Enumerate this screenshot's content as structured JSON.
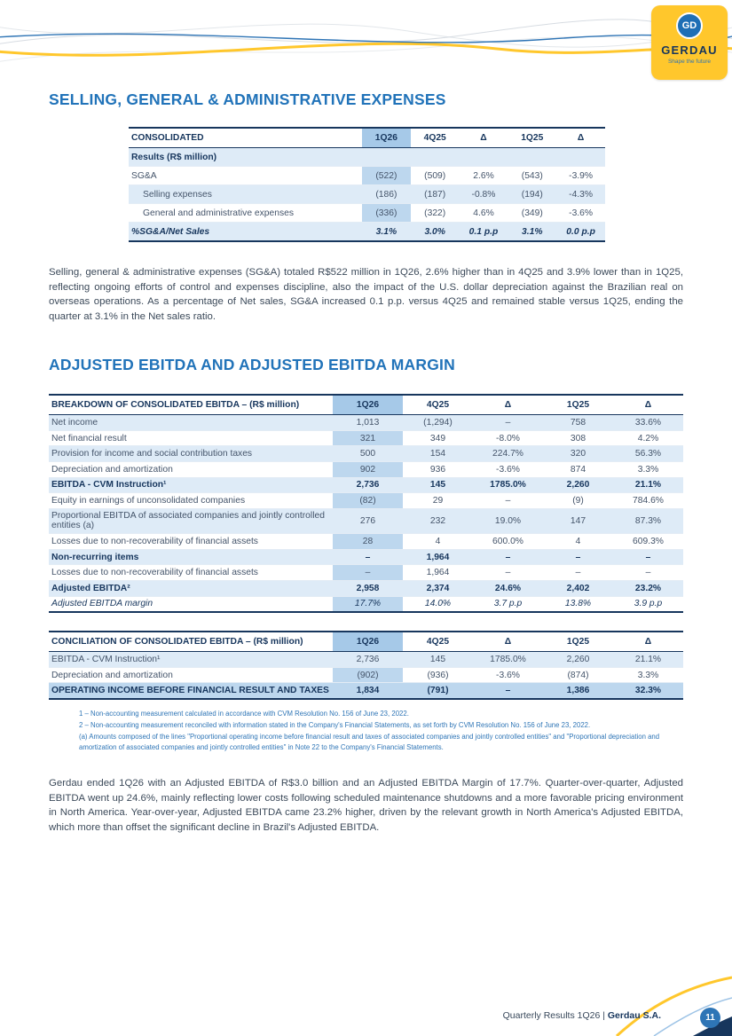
{
  "brand": {
    "name": "GERDAU",
    "tagline": "Shape the future",
    "logo_monogram": "GD"
  },
  "colors": {
    "accent_yellow": "#FFC72C",
    "navy": "#17365D",
    "title_blue": "#2173B9",
    "column_highlight": "#BDD7EE",
    "row_shade": "#DEEBF7",
    "footnote_blue": "#2E75B6"
  },
  "sga_section": {
    "title": "SELLING, GENERAL & ADMINISTRATIVE EXPENSES",
    "table": {
      "header": [
        "CONSOLIDATED",
        "1Q26",
        "4Q25",
        "Δ",
        "1Q25",
        "Δ"
      ],
      "rows": [
        {
          "cells": [
            "Results (R$ million)",
            "",
            "",
            "",
            "",
            ""
          ],
          "style": [
            "subheader",
            "shade"
          ]
        },
        {
          "cells": [
            "SG&A",
            "(522)",
            "(509)",
            "2.6%",
            "(543)",
            "-3.9%"
          ],
          "style": []
        },
        {
          "cells": [
            "Selling expenses",
            "(186)",
            "(187)",
            "-0.8%",
            "(194)",
            "-4.3%"
          ],
          "style": [
            "indent",
            "shade"
          ]
        },
        {
          "cells": [
            "General and administrative expenses",
            "(336)",
            "(322)",
            "4.6%",
            "(349)",
            "-3.6%"
          ],
          "style": [
            "indent"
          ]
        },
        {
          "cells": [
            "%SG&A/Net Sales",
            "3.1%",
            "3.0%",
            "0.1 p.p",
            "3.1%",
            "0.0 p.p"
          ],
          "style": [
            "bold",
            "italic",
            "shade"
          ]
        }
      ]
    },
    "paragraph": "Selling, general & administrative expenses (SG&A) totaled R$522 million in 1Q26, 2.6% higher than in 4Q25 and 3.9% lower than in 1Q25, reflecting ongoing efforts of control and expenses discipline, also the impact of the U.S. dollar depreciation against the Brazilian real on overseas operations. As a percentage of Net sales, SG&A increased 0.1 p.p. versus 4Q25 and remained stable versus 1Q25, ending the quarter at 3.1% in the Net sales ratio."
  },
  "ebitda_section": {
    "title": "ADJUSTED EBITDA AND ADJUSTED EBITDA MARGIN",
    "breakdown_table": {
      "header": [
        "BREAKDOWN OF CONSOLIDATED EBITDA – (R$ million)",
        "1Q26",
        "4Q25",
        "Δ",
        "1Q25",
        "Δ"
      ],
      "rows": [
        {
          "cells": [
            "Net income",
            "1,013",
            "(1,294)",
            "–",
            "758",
            "33.6%"
          ],
          "style": [
            "shade"
          ]
        },
        {
          "cells": [
            "Net financial result",
            "321",
            "349",
            "-8.0%",
            "308",
            "4.2%"
          ],
          "style": []
        },
        {
          "cells": [
            "Provision for income and social contribution taxes",
            "500",
            "154",
            "224.7%",
            "320",
            "56.3%"
          ],
          "style": [
            "shade"
          ]
        },
        {
          "cells": [
            "Depreciation and amortization",
            "902",
            "936",
            "-3.6%",
            "874",
            "3.3%"
          ],
          "style": []
        },
        {
          "cells": [
            "EBITDA - CVM Instruction¹",
            "2,736",
            "145",
            "1785.0%",
            "2,260",
            "21.1%"
          ],
          "style": [
            "bold",
            "shade"
          ]
        },
        {
          "cells": [
            "Equity in earnings of unconsolidated companies",
            "(82)",
            "29",
            "–",
            "(9)",
            "784.6%"
          ],
          "style": []
        },
        {
          "cells": [
            "Proportional EBITDA of associated companies and jointly controlled entities (a)",
            "276",
            "232",
            "19.0%",
            "147",
            "87.3%"
          ],
          "style": [
            "shade"
          ]
        },
        {
          "cells": [
            "Losses due to non-recoverability of financial assets",
            "28",
            "4",
            "600.0%",
            "4",
            "609.3%"
          ],
          "style": []
        },
        {
          "cells": [
            "Non-recurring items",
            "–",
            "1,964",
            "–",
            "–",
            "–"
          ],
          "style": [
            "bold",
            "shade"
          ]
        },
        {
          "cells": [
            "Losses due to non-recoverability of financial assets",
            "–",
            "1,964",
            "–",
            "–",
            "–"
          ],
          "style": []
        },
        {
          "cells": [
            "Adjusted EBITDA²",
            "2,958",
            "2,374",
            "24.6%",
            "2,402",
            "23.2%"
          ],
          "style": [
            "bold",
            "shade"
          ]
        },
        {
          "cells": [
            "Adjusted EBITDA margin",
            "17.7%",
            "14.0%",
            "3.7 p.p",
            "13.8%",
            "3.9 p.p"
          ],
          "style": [
            "italic"
          ]
        }
      ]
    },
    "conciliation_table": {
      "header": [
        "CONCILIATION OF CONSOLIDATED EBITDA – (R$ million)",
        "1Q26",
        "4Q25",
        "Δ",
        "1Q25",
        "Δ"
      ],
      "rows": [
        {
          "cells": [
            "EBITDA - CVM Instruction¹",
            "2,736",
            "145",
            "1785.0%",
            "2,260",
            "21.1%"
          ],
          "style": [
            "shade"
          ]
        },
        {
          "cells": [
            "Depreciation and amortization",
            "(902)",
            "(936)",
            "-3.6%",
            "(874)",
            "3.3%"
          ],
          "style": []
        },
        {
          "cells": [
            "OPERATING INCOME BEFORE FINANCIAL RESULT AND TAXES",
            "1,834",
            "(791)",
            "–",
            "1,386",
            "32.3%"
          ],
          "style": [
            "total"
          ]
        }
      ]
    },
    "footnotes": [
      "1 – Non-accounting measurement calculated in accordance with CVM Resolution No. 156 of June 23, 2022.",
      "2 – Non-accounting measurement reconciled with information stated in the Company's Financial Statements, as set forth by CVM Resolution No. 156 of June 23, 2022.",
      "(a) Amounts composed of the lines \"Proportional operating income before financial result and taxes of associated companies and jointly controlled entities\" and \"Proportional depreciation and amortization of associated companies and jointly controlled entities\" in Note 22 to the Company's Financial Statements."
    ],
    "paragraph": "Gerdau ended 1Q26 with an Adjusted EBITDA of R$3.0 billion and an Adjusted EBITDA Margin of 17.7%. Quarter-over-quarter, Adjusted EBITDA went up 24.6%, mainly reflecting lower costs following scheduled maintenance shutdowns and a more favorable pricing environment in North America. Year-over-year, Adjusted EBITDA came 23.2% higher, driven by the relevant growth in North America's Adjusted EBITDA, which more than offset the significant decline in Brazil's Adjusted EBITDA."
  },
  "footer": {
    "text_regular": "Quarterly Results 1Q26 | ",
    "text_bold": "Gerdau S.A.",
    "page_number": "11"
  }
}
